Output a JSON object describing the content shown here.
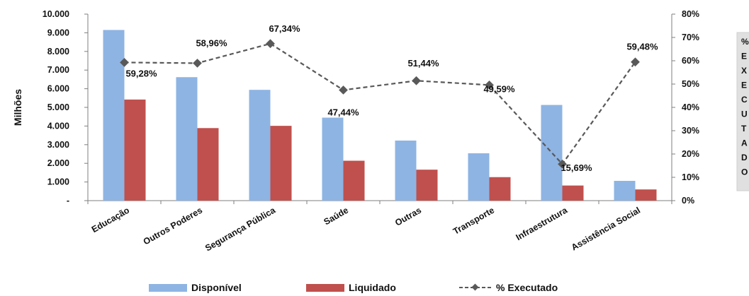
{
  "chart_data": {
    "type": "bar",
    "categories": [
      "Educação",
      "Outros Poderes",
      "Segurança Pública",
      "Saúde",
      "Outras",
      "Transporte",
      "Infraestrutura",
      "Assistência Social"
    ],
    "series": [
      {
        "name": "Disponível",
        "type": "bar",
        "axis": "left",
        "color": "#8eb4e3",
        "values": [
          9150,
          6620,
          5940,
          4450,
          3220,
          2540,
          5130,
          1060
        ]
      },
      {
        "name": "Liquidado",
        "type": "bar",
        "axis": "left",
        "color": "#c0504d",
        "values": [
          5420,
          3890,
          4010,
          2140,
          1660,
          1260,
          810,
          600
        ]
      },
      {
        "name": "% Executado",
        "type": "line",
        "axis": "right",
        "color": "#595959",
        "values": [
          59.28,
          58.96,
          67.34,
          47.44,
          51.44,
          49.59,
          15.69,
          59.48
        ],
        "labels": [
          "59,28%",
          "58,96%",
          "67,34%",
          "47,44%",
          "51,44%",
          "49,59%",
          "15,69%",
          "59,48%"
        ]
      }
    ],
    "ylabel": "Milhões",
    "ylim": [
      0,
      10000
    ],
    "y_ticks": [
      "-",
      "1.000",
      "2.000",
      "3.000",
      "4.000",
      "5.000",
      "6.000",
      "7.000",
      "8.000",
      "9.000",
      "10.000"
    ],
    "y2lim": [
      0,
      80
    ],
    "y2_ticks": [
      "0%",
      "10%",
      "20%",
      "30%",
      "40%",
      "50%",
      "60%",
      "70%",
      "80%"
    ],
    "legend": [
      "Disponível",
      "Liquidado",
      "% Executado"
    ],
    "legend_position": "bottom",
    "side_box_letters": [
      "%",
      "E",
      "X",
      "E",
      "C",
      "U",
      "T",
      "A",
      "D",
      "O"
    ]
  }
}
